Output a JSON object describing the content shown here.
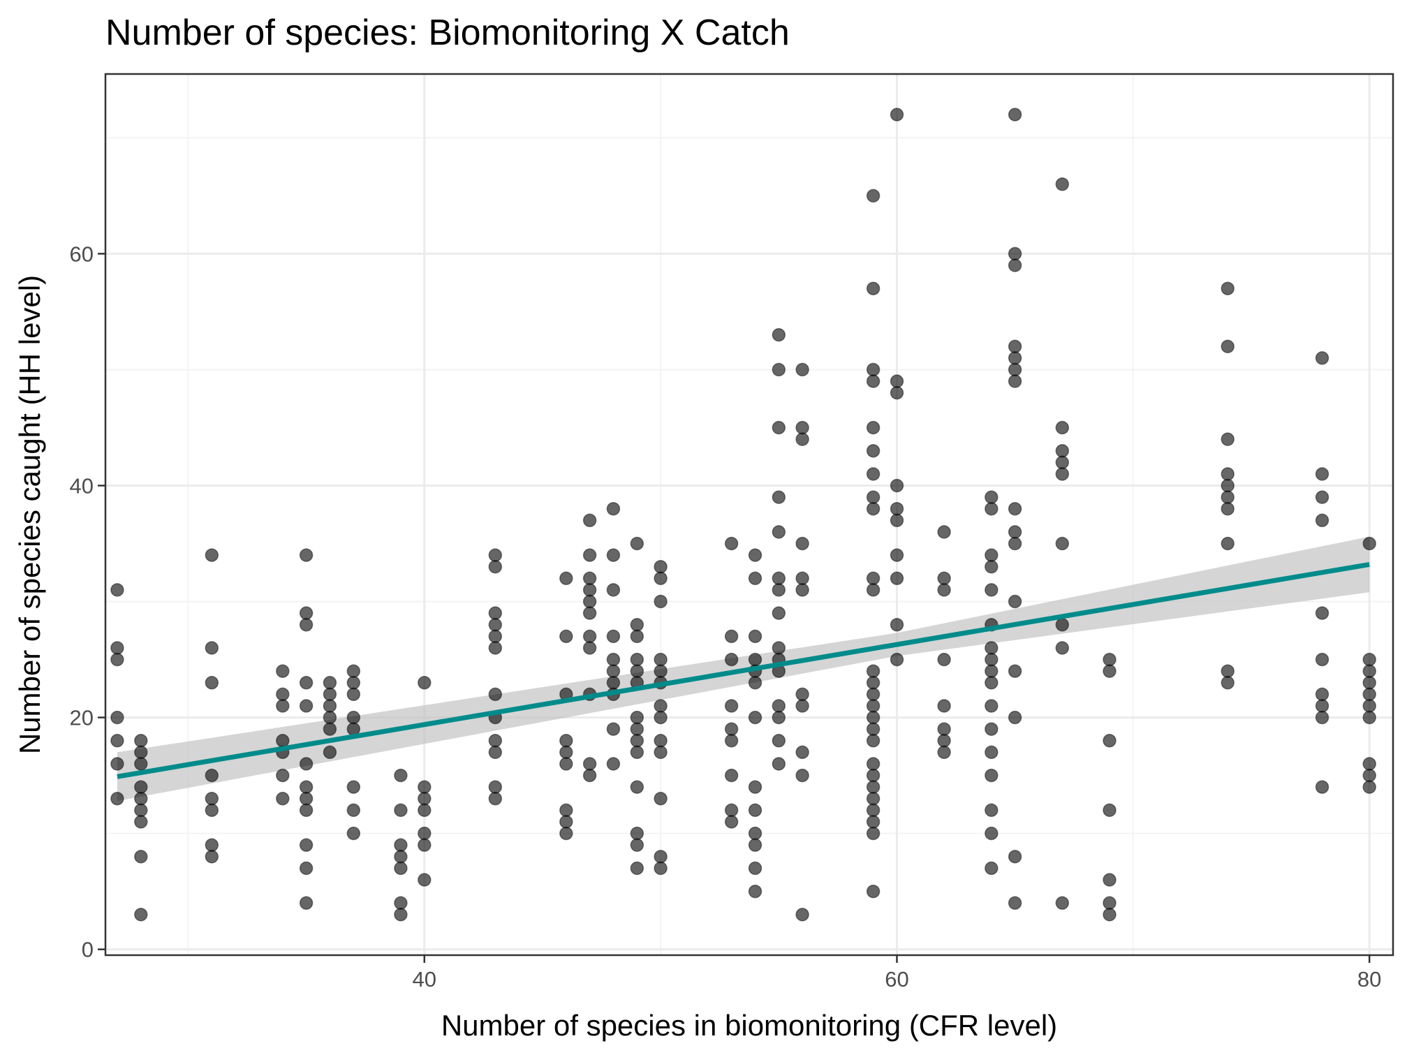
{
  "chart_data": {
    "type": "scatter",
    "title": "Number of species: Biomonitoring X Catch",
    "xlabel": "Number of species in biomonitoring (CFR level)",
    "ylabel": "Number of species caught (HH level)",
    "xlim": [
      26.5,
      81
    ],
    "ylim": [
      -0.5,
      75.5
    ],
    "x_ticks": [
      40,
      60,
      80
    ],
    "x_minor_ticks": [
      30,
      50,
      70
    ],
    "y_ticks": [
      0,
      20,
      40,
      60
    ],
    "y_minor_ticks": [
      10,
      30,
      50,
      70
    ],
    "grid": true,
    "colors": {
      "points": "#000000",
      "fit_line": "#008b8b",
      "confidence_band": "#bfbfbf"
    },
    "points": [
      [
        27,
        31
      ],
      [
        27,
        26
      ],
      [
        27,
        25
      ],
      [
        27,
        20
      ],
      [
        27,
        18
      ],
      [
        27,
        16
      ],
      [
        27,
        13
      ],
      [
        28,
        18
      ],
      [
        28,
        17
      ],
      [
        28,
        16
      ],
      [
        28,
        14
      ],
      [
        28,
        13
      ],
      [
        28,
        12
      ],
      [
        28,
        11
      ],
      [
        28,
        8
      ],
      [
        28,
        3
      ],
      [
        31,
        34
      ],
      [
        31,
        26
      ],
      [
        31,
        23
      ],
      [
        31,
        15
      ],
      [
        31,
        13
      ],
      [
        31,
        12
      ],
      [
        31,
        9
      ],
      [
        31,
        8
      ],
      [
        34,
        24
      ],
      [
        34,
        22
      ],
      [
        34,
        21
      ],
      [
        34,
        18
      ],
      [
        34,
        17
      ],
      [
        34,
        15
      ],
      [
        34,
        13
      ],
      [
        35,
        34
      ],
      [
        35,
        29
      ],
      [
        35,
        28
      ],
      [
        35,
        23
      ],
      [
        35,
        21
      ],
      [
        35,
        16
      ],
      [
        35,
        14
      ],
      [
        35,
        13
      ],
      [
        35,
        12
      ],
      [
        35,
        9
      ],
      [
        35,
        7
      ],
      [
        35,
        4
      ],
      [
        36,
        23
      ],
      [
        36,
        22
      ],
      [
        36,
        21
      ],
      [
        36,
        20
      ],
      [
        36,
        19
      ],
      [
        36,
        17
      ],
      [
        37,
        24
      ],
      [
        37,
        23
      ],
      [
        37,
        22
      ],
      [
        37,
        20
      ],
      [
        37,
        19
      ],
      [
        37,
        14
      ],
      [
        37,
        12
      ],
      [
        37,
        10
      ],
      [
        39,
        15
      ],
      [
        39,
        12
      ],
      [
        39,
        9
      ],
      [
        39,
        8
      ],
      [
        39,
        7
      ],
      [
        39,
        4
      ],
      [
        39,
        3
      ],
      [
        40,
        23
      ],
      [
        40,
        14
      ],
      [
        40,
        13
      ],
      [
        40,
        12
      ],
      [
        40,
        10
      ],
      [
        40,
        9
      ],
      [
        40,
        6
      ],
      [
        43,
        34
      ],
      [
        43,
        33
      ],
      [
        43,
        29
      ],
      [
        43,
        28
      ],
      [
        43,
        27
      ],
      [
        43,
        26
      ],
      [
        43,
        22
      ],
      [
        43,
        20
      ],
      [
        43,
        18
      ],
      [
        43,
        17
      ],
      [
        43,
        14
      ],
      [
        43,
        13
      ],
      [
        46,
        32
      ],
      [
        46,
        27
      ],
      [
        46,
        22
      ],
      [
        46,
        18
      ],
      [
        46,
        17
      ],
      [
        46,
        16
      ],
      [
        46,
        12
      ],
      [
        46,
        11
      ],
      [
        46,
        10
      ],
      [
        47,
        37
      ],
      [
        47,
        34
      ],
      [
        47,
        32
      ],
      [
        47,
        31
      ],
      [
        47,
        30
      ],
      [
        47,
        29
      ],
      [
        47,
        27
      ],
      [
        47,
        26
      ],
      [
        47,
        22
      ],
      [
        47,
        16
      ],
      [
        47,
        15
      ],
      [
        48,
        38
      ],
      [
        48,
        34
      ],
      [
        48,
        31
      ],
      [
        48,
        27
      ],
      [
        48,
        25
      ],
      [
        48,
        24
      ],
      [
        48,
        23
      ],
      [
        48,
        22
      ],
      [
        48,
        19
      ],
      [
        48,
        16
      ],
      [
        49,
        35
      ],
      [
        49,
        28
      ],
      [
        49,
        27
      ],
      [
        49,
        25
      ],
      [
        49,
        24
      ],
      [
        49,
        23
      ],
      [
        49,
        20
      ],
      [
        49,
        19
      ],
      [
        49,
        18
      ],
      [
        49,
        17
      ],
      [
        49,
        14
      ],
      [
        49,
        10
      ],
      [
        49,
        9
      ],
      [
        49,
        7
      ],
      [
        50,
        33
      ],
      [
        50,
        32
      ],
      [
        50,
        30
      ],
      [
        50,
        25
      ],
      [
        50,
        24
      ],
      [
        50,
        23
      ],
      [
        50,
        21
      ],
      [
        50,
        20
      ],
      [
        50,
        18
      ],
      [
        50,
        17
      ],
      [
        50,
        13
      ],
      [
        50,
        8
      ],
      [
        50,
        7
      ],
      [
        53,
        35
      ],
      [
        53,
        27
      ],
      [
        53,
        25
      ],
      [
        53,
        21
      ],
      [
        53,
        19
      ],
      [
        53,
        18
      ],
      [
        53,
        15
      ],
      [
        53,
        12
      ],
      [
        53,
        11
      ],
      [
        54,
        34
      ],
      [
        54,
        32
      ],
      [
        54,
        27
      ],
      [
        54,
        25
      ],
      [
        54,
        24
      ],
      [
        54,
        23
      ],
      [
        54,
        20
      ],
      [
        54,
        14
      ],
      [
        54,
        12
      ],
      [
        54,
        10
      ],
      [
        54,
        9
      ],
      [
        54,
        7
      ],
      [
        54,
        5
      ],
      [
        55,
        53
      ],
      [
        55,
        50
      ],
      [
        55,
        45
      ],
      [
        55,
        39
      ],
      [
        55,
        36
      ],
      [
        55,
        32
      ],
      [
        55,
        31
      ],
      [
        55,
        29
      ],
      [
        55,
        26
      ],
      [
        55,
        25
      ],
      [
        55,
        24
      ],
      [
        55,
        21
      ],
      [
        55,
        20
      ],
      [
        55,
        18
      ],
      [
        55,
        16
      ],
      [
        56,
        50
      ],
      [
        56,
        45
      ],
      [
        56,
        44
      ],
      [
        56,
        35
      ],
      [
        56,
        32
      ],
      [
        56,
        31
      ],
      [
        56,
        22
      ],
      [
        56,
        21
      ],
      [
        56,
        17
      ],
      [
        56,
        15
      ],
      [
        56,
        3
      ],
      [
        59,
        65
      ],
      [
        59,
        57
      ],
      [
        59,
        50
      ],
      [
        59,
        49
      ],
      [
        59,
        45
      ],
      [
        59,
        43
      ],
      [
        59,
        41
      ],
      [
        59,
        39
      ],
      [
        59,
        38
      ],
      [
        59,
        32
      ],
      [
        59,
        31
      ],
      [
        59,
        24
      ],
      [
        59,
        23
      ],
      [
        59,
        22
      ],
      [
        59,
        21
      ],
      [
        59,
        20
      ],
      [
        59,
        19
      ],
      [
        59,
        18
      ],
      [
        59,
        16
      ],
      [
        59,
        15
      ],
      [
        59,
        14
      ],
      [
        59,
        13
      ],
      [
        59,
        12
      ],
      [
        59,
        11
      ],
      [
        59,
        10
      ],
      [
        59,
        5
      ],
      [
        60,
        72
      ],
      [
        60,
        49
      ],
      [
        60,
        48
      ],
      [
        60,
        40
      ],
      [
        60,
        38
      ],
      [
        60,
        37
      ],
      [
        60,
        34
      ],
      [
        60,
        32
      ],
      [
        60,
        28
      ],
      [
        60,
        25
      ],
      [
        62,
        36
      ],
      [
        62,
        32
      ],
      [
        62,
        31
      ],
      [
        62,
        25
      ],
      [
        62,
        21
      ],
      [
        62,
        19
      ],
      [
        62,
        18
      ],
      [
        62,
        17
      ],
      [
        64,
        39
      ],
      [
        64,
        38
      ],
      [
        64,
        34
      ],
      [
        64,
        33
      ],
      [
        64,
        31
      ],
      [
        64,
        28
      ],
      [
        64,
        26
      ],
      [
        64,
        25
      ],
      [
        64,
        24
      ],
      [
        64,
        23
      ],
      [
        64,
        21
      ],
      [
        64,
        19
      ],
      [
        64,
        17
      ],
      [
        64,
        15
      ],
      [
        64,
        12
      ],
      [
        64,
        10
      ],
      [
        64,
        7
      ],
      [
        65,
        72
      ],
      [
        65,
        60
      ],
      [
        65,
        59
      ],
      [
        65,
        52
      ],
      [
        65,
        51
      ],
      [
        65,
        50
      ],
      [
        65,
        49
      ],
      [
        65,
        38
      ],
      [
        65,
        36
      ],
      [
        65,
        35
      ],
      [
        65,
        30
      ],
      [
        65,
        24
      ],
      [
        65,
        20
      ],
      [
        65,
        8
      ],
      [
        65,
        4
      ],
      [
        67,
        66
      ],
      [
        67,
        45
      ],
      [
        67,
        43
      ],
      [
        67,
        42
      ],
      [
        67,
        41
      ],
      [
        67,
        35
      ],
      [
        67,
        28
      ],
      [
        67,
        26
      ],
      [
        67,
        4
      ],
      [
        69,
        25
      ],
      [
        69,
        24
      ],
      [
        69,
        18
      ],
      [
        69,
        12
      ],
      [
        69,
        6
      ],
      [
        69,
        4
      ],
      [
        69,
        3
      ],
      [
        74,
        57
      ],
      [
        74,
        52
      ],
      [
        74,
        44
      ],
      [
        74,
        41
      ],
      [
        74,
        40
      ],
      [
        74,
        39
      ],
      [
        74,
        38
      ],
      [
        74,
        35
      ],
      [
        74,
        24
      ],
      [
        74,
        23
      ],
      [
        78,
        51
      ],
      [
        78,
        41
      ],
      [
        78,
        39
      ],
      [
        78,
        37
      ],
      [
        78,
        29
      ],
      [
        78,
        25
      ],
      [
        78,
        22
      ],
      [
        78,
        21
      ],
      [
        78,
        20
      ],
      [
        78,
        14
      ],
      [
        80,
        35
      ],
      [
        80,
        25
      ],
      [
        80,
        24
      ],
      [
        80,
        23
      ],
      [
        80,
        22
      ],
      [
        80,
        21
      ],
      [
        80,
        20
      ],
      [
        80,
        16
      ],
      [
        80,
        15
      ],
      [
        80,
        14
      ]
    ],
    "fit": {
      "method": "linear",
      "x_start": 27,
      "y_start": 14.9,
      "x_end": 80,
      "y_end": 33.2,
      "ci_lower_start": 12.8,
      "ci_upper_start": 17.0,
      "ci_lower_end": 30.8,
      "ci_upper_end": 35.6,
      "ci_lower_mid": 25.3,
      "ci_upper_mid": 27.3,
      "x_mid": 60
    }
  }
}
